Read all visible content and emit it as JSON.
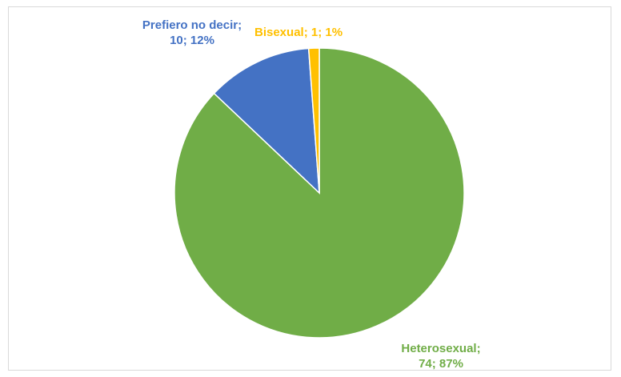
{
  "chart_data": {
    "type": "pie",
    "categories": [
      "Heterosexual",
      "Prefiero no decir",
      "Bisexual"
    ],
    "values": [
      74,
      10,
      1
    ],
    "value_labels": [
      "Heterosexual; 74; 87%",
      "Prefiero no decir; 10; 12%",
      "Bisexual; 1; 1%"
    ],
    "colors": [
      "#70ad47",
      "#4472c4",
      "#ffc000"
    ]
  }
}
